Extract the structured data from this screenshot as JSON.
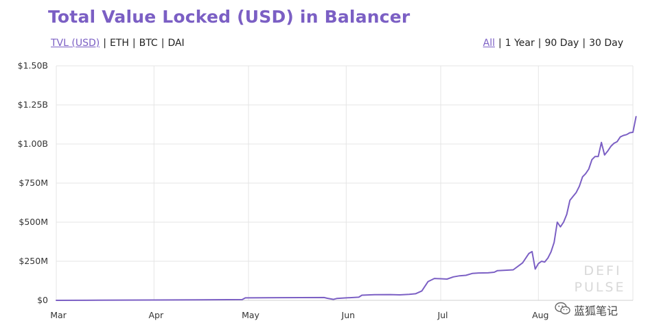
{
  "chart_data": {
    "type": "line",
    "title": "Total Value Locked (USD) in Balancer",
    "xlabel": "",
    "ylabel": "",
    "y_tick_labels": [
      "$0",
      "$250M",
      "$500M",
      "$750M",
      "$1.00B",
      "$1.25B",
      "$1.50B"
    ],
    "y_ticks": [
      0,
      250,
      500,
      750,
      1000,
      1250,
      1500
    ],
    "ylim": [
      0,
      1500
    ],
    "y_unit": "millions USD",
    "xlim": [
      "2020-03-01",
      "2020-08-31"
    ],
    "x_tick_labels": [
      "Mar",
      "Apr",
      "May",
      "Jun",
      "Jul",
      "Aug"
    ],
    "x_ticks": [
      "2020-03-01",
      "2020-04-01",
      "2020-05-01",
      "2020-06-01",
      "2020-07-01",
      "2020-08-01"
    ],
    "grid": true,
    "legend": "none",
    "line_color": "#7b5fc4",
    "series": [
      {
        "points": [
          [
            "2020-03-01",
            0
          ],
          [
            "2020-03-15",
            1
          ],
          [
            "2020-04-01",
            2
          ],
          [
            "2020-04-15",
            3
          ],
          [
            "2020-04-29",
            5
          ],
          [
            "2020-04-30",
            16
          ],
          [
            "2020-05-10",
            17
          ],
          [
            "2020-05-25",
            18
          ],
          [
            "2020-05-26",
            13
          ],
          [
            "2020-05-28",
            6
          ],
          [
            "2020-05-29",
            12
          ],
          [
            "2020-06-01",
            16
          ],
          [
            "2020-06-05",
            20
          ],
          [
            "2020-06-06",
            33
          ],
          [
            "2020-06-10",
            36
          ],
          [
            "2020-06-15",
            37
          ],
          [
            "2020-06-18",
            35
          ],
          [
            "2020-06-21",
            38
          ],
          [
            "2020-06-23",
            42
          ],
          [
            "2020-06-25",
            60
          ],
          [
            "2020-06-27",
            120
          ],
          [
            "2020-06-29",
            140
          ],
          [
            "2020-07-01",
            138
          ],
          [
            "2020-07-03",
            136
          ],
          [
            "2020-07-05",
            150
          ],
          [
            "2020-07-07",
            157
          ],
          [
            "2020-07-09",
            160
          ],
          [
            "2020-07-11",
            172
          ],
          [
            "2020-07-13",
            175
          ],
          [
            "2020-07-16",
            176
          ],
          [
            "2020-07-18",
            180
          ],
          [
            "2020-07-19",
            190
          ],
          [
            "2020-07-22",
            193
          ],
          [
            "2020-07-24",
            195
          ],
          [
            "2020-07-26",
            225
          ],
          [
            "2020-07-27",
            240
          ],
          [
            "2020-07-28",
            270
          ],
          [
            "2020-07-29",
            300
          ],
          [
            "2020-07-30",
            312
          ],
          [
            "2020-07-31",
            200
          ],
          [
            "2020-08-01",
            235
          ],
          [
            "2020-08-02",
            250
          ],
          [
            "2020-08-03",
            245
          ],
          [
            "2020-08-04",
            270
          ],
          [
            "2020-08-05",
            310
          ],
          [
            "2020-08-06",
            370
          ],
          [
            "2020-08-07",
            500
          ],
          [
            "2020-08-08",
            470
          ],
          [
            "2020-08-09",
            500
          ],
          [
            "2020-08-10",
            550
          ],
          [
            "2020-08-11",
            640
          ],
          [
            "2020-08-12",
            665
          ],
          [
            "2020-08-13",
            690
          ],
          [
            "2020-08-14",
            730
          ],
          [
            "2020-08-15",
            790
          ],
          [
            "2020-08-16",
            810
          ],
          [
            "2020-08-17",
            840
          ],
          [
            "2020-08-18",
            900
          ],
          [
            "2020-08-19",
            920
          ],
          [
            "2020-08-20",
            920
          ],
          [
            "2020-08-21",
            1010
          ],
          [
            "2020-08-22",
            930
          ],
          [
            "2020-08-23",
            955
          ],
          [
            "2020-08-24",
            985
          ],
          [
            "2020-08-25",
            1005
          ],
          [
            "2020-08-26",
            1015
          ],
          [
            "2020-08-27",
            1045
          ],
          [
            "2020-08-28",
            1055
          ],
          [
            "2020-08-29",
            1060
          ],
          [
            "2020-08-30",
            1072
          ],
          [
            "2020-08-31",
            1075
          ],
          [
            "2020-09-01",
            1175
          ]
        ]
      }
    ]
  },
  "toggles": {
    "metrics": [
      {
        "label": "TVL (USD)",
        "active": true
      },
      {
        "label": "ETH",
        "active": false
      },
      {
        "label": "BTC",
        "active": false
      },
      {
        "label": "DAI",
        "active": false
      }
    ],
    "ranges": [
      {
        "label": "All",
        "active": true
      },
      {
        "label": "1 Year",
        "active": false
      },
      {
        "label": "90 Day",
        "active": false
      },
      {
        "label": "30 Day",
        "active": false
      }
    ]
  },
  "watermark": {
    "logo_line1": "DEFI",
    "logo_line2": "PULSE",
    "wechat_text": "蓝狐笔记",
    "icon": "wechat-icon"
  }
}
